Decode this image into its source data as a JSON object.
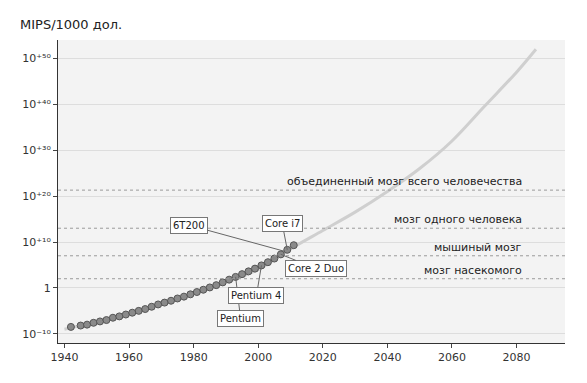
{
  "chart_data": {
    "type": "scatter",
    "y_label": "MIPS/1000 дол.",
    "log": "y",
    "grid": true,
    "xlim": [
      1938,
      2095
    ],
    "xticks": [
      1940,
      1960,
      1980,
      2000,
      2020,
      2040,
      2060,
      2080
    ],
    "ylim": [
      1e-12,
      1e+54
    ],
    "yticks": [
      {
        "value": 1e-10,
        "label": "10⁻¹⁰"
      },
      1,
      {
        "value": 10000000000.0,
        "label": "10⁺¹⁰"
      },
      {
        "value": 1e+20,
        "label": "10⁺²⁰"
      },
      {
        "value": 1e+30,
        "label": "10⁺³⁰"
      },
      {
        "value": 1e+40,
        "label": "10⁺⁴⁰"
      },
      {
        "value": 1e+50,
        "label": "10⁺⁵⁰"
      }
    ],
    "series": [
      {
        "type": "line",
        "color": "#cfcfcf",
        "line_style": "solid",
        "x": [
          1940,
          1960,
          1980,
          2000,
          2010,
          2020,
          2030,
          2040,
          2050,
          2060,
          2070,
          2080,
          2086
        ],
        "values": [
          1e-09,
          2.5e-06,
          0.063,
          10000,
          320000000.0,
          3200000000000.0,
          3.2e+16,
          1e+21,
          1e+26,
          1e+32,
          3.2e+39,
          1e+47,
          1e+52
        ]
      },
      {
        "type": "scatter",
        "color": "#8a8a8a",
        "marker": "circle",
        "x": [
          1942,
          1945,
          1947,
          1949,
          1951,
          1953,
          1955,
          1957,
          1959,
          1961,
          1963,
          1965,
          1967,
          1969,
          1971,
          1973,
          1975,
          1977,
          1979,
          1981,
          1983,
          1985,
          1987,
          1989,
          1991,
          1993,
          1995,
          1997,
          1999,
          2001,
          2003,
          2005,
          2007,
          2009,
          2011
        ],
        "values": [
          3.2e-09,
          6.3e-09,
          1e-08,
          2.5e-08,
          5e-08,
          1e-07,
          3.2e-07,
          6.3e-07,
          1.6e-06,
          4e-06,
          1e-05,
          2.5e-05,
          7.9e-05,
          0.00025,
          0.00063,
          0.0016,
          0.005,
          0.0126,
          0.04,
          0.126,
          0.4,
          1.26,
          4,
          16,
          63,
          250,
          1000,
          4000,
          16000,
          79000,
          400000.0,
          2500000.0,
          20000000.0,
          200000000.0,
          2000000000.0
        ]
      }
    ],
    "annotations": [
      {
        "text": "Pentium",
        "x": 1993,
        "y": 250
      },
      {
        "text": "Pentium 4",
        "x": 2001,
        "y": 79000
      },
      {
        "text": "Core 2 Duo",
        "x": 2007,
        "y": 20000000.0
      },
      {
        "text": "Core i7",
        "x": 2009,
        "y": 200000000.0
      },
      {
        "text": "6T200",
        "x": 2008,
        "y": 100000000.0
      }
    ],
    "levels": [
      {
        "label": "объединенный мозг всего человечества",
        "value": 2e+21
      },
      {
        "label": "мозг одного человека",
        "value": 10000000000000.0
      },
      {
        "label": "мышиный мозг",
        "value": 10000000.0
      },
      {
        "label": "мозг насекомого",
        "value": 100
      }
    ]
  }
}
